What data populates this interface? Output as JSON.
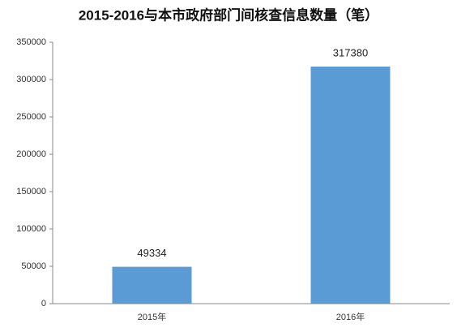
{
  "chart_data": {
    "type": "bar",
    "title": "2015-2016与本市政府部门间核查信息数量（笔）",
    "categories": [
      "2015年",
      "2016年"
    ],
    "values": [
      49334,
      317380
    ],
    "color": "#5b9bd5",
    "ylim": [
      0,
      350000
    ],
    "yticks": [
      0,
      50000,
      100000,
      150000,
      200000,
      250000,
      300000,
      350000
    ],
    "grid": false
  }
}
